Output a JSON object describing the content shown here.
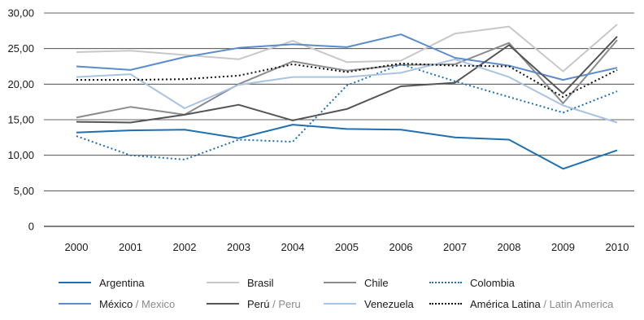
{
  "chart_data": {
    "type": "line",
    "x": [
      "2000",
      "2001",
      "2002",
      "2003",
      "2004",
      "2005",
      "2006",
      "2007",
      "2008",
      "2009",
      "2010"
    ],
    "y_ticks": [
      "0",
      "5,00",
      "10,00",
      "15,00",
      "20,00",
      "25,00",
      "30,00"
    ],
    "ylim": [
      0,
      30
    ],
    "grid": true,
    "legend_position": "bottom",
    "series": [
      {
        "name": "Argentina",
        "name_alt": "",
        "color": "#1f6fb2",
        "dash": "solid",
        "values": [
          13.2,
          13.5,
          13.6,
          12.4,
          14.3,
          13.7,
          13.6,
          12.5,
          12.2,
          8.1,
          10.7
        ]
      },
      {
        "name": "Brasil",
        "name_alt": "",
        "color": "#c8c8c8",
        "dash": "solid",
        "values": [
          24.5,
          24.7,
          24.1,
          23.5,
          26.1,
          23.1,
          23.3,
          27.1,
          28.1,
          21.8,
          28.4
        ]
      },
      {
        "name": "Chile",
        "name_alt": "",
        "color": "#8c8c8c",
        "dash": "solid",
        "values": [
          15.3,
          16.8,
          15.7,
          20.0,
          23.2,
          21.9,
          22.7,
          22.8,
          25.8,
          17.3,
          26.2
        ]
      },
      {
        "name": "Colombia",
        "name_alt": "",
        "color": "#1f6fb2",
        "dash": "dotted",
        "values": [
          12.7,
          10.0,
          9.4,
          12.2,
          11.9,
          19.8,
          22.8,
          20.4,
          18.2,
          16.0,
          19.0
        ]
      },
      {
        "name": "México",
        "name_alt": "Mexico",
        "color": "#5b8ccc",
        "dash": "solid",
        "values": [
          22.5,
          22.0,
          23.8,
          25.1,
          25.6,
          25.2,
          27.0,
          23.7,
          22.6,
          20.6,
          22.3
        ]
      },
      {
        "name": "Perú",
        "name_alt": "Peru",
        "color": "#555555",
        "dash": "solid",
        "values": [
          14.7,
          14.6,
          15.7,
          17.1,
          14.9,
          16.5,
          19.7,
          20.2,
          25.5,
          18.7,
          26.7
        ]
      },
      {
        "name": "Venezuela",
        "name_alt": "",
        "color": "#a9c3e3",
        "dash": "solid",
        "values": [
          21.0,
          21.4,
          16.6,
          19.9,
          21.0,
          21.0,
          21.6,
          23.5,
          21.0,
          17.0,
          14.6
        ]
      },
      {
        "name": "América Latina",
        "name_alt": "Latin America",
        "color": "#111111",
        "dash": "dotted",
        "values": [
          20.6,
          20.6,
          20.7,
          21.2,
          22.8,
          21.7,
          22.9,
          22.6,
          22.5,
          18.2,
          22.0
        ]
      }
    ]
  }
}
